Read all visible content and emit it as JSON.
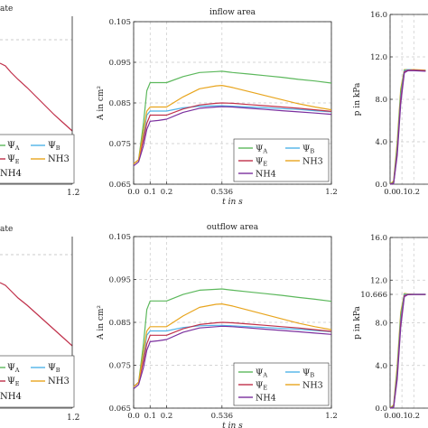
{
  "figure": {
    "top_row": {
      "left_panel": {
        "title_fragment": "ate",
        "x_tick_labels": [
          "1.2"
        ],
        "legend": {
          "entries": [
            {
              "sym": "Ψ",
              "sub": "A",
              "color": "#5cb85c"
            },
            {
              "sym": "Ψ",
              "sub": "B",
              "color": "#4fb3e8"
            },
            {
              "sym": "Ψ",
              "sub": "E",
              "color": "#c0304a"
            },
            {
              "text": "NH3",
              "color": "#e8a51e"
            },
            {
              "text": "NH4",
              "color": "#7b2f9e"
            }
          ]
        }
      },
      "middle_panel": {
        "chart_data": {
          "type": "line",
          "title": "inflow area",
          "xlabel": "t in s",
          "ylabel": "A in cm²",
          "xlim": [
            0,
            1.2
          ],
          "ylim": [
            0.065,
            0.105
          ],
          "x_ticks": [
            "0.0",
            "0.1",
            "0.2",
            "0.536",
            "1.2"
          ],
          "y_ticks": [
            "0.065",
            "0.075",
            "0.085",
            "0.095",
            "0.105"
          ],
          "grid": true,
          "legend_position": "bottom-right",
          "series": [
            {
              "name": "ΨA",
              "color": "#5cb85c",
              "x": [
                0,
                0.03,
                0.06,
                0.08,
                0.1,
                0.15,
                0.2,
                0.3,
                0.4,
                0.5,
                0.536,
                0.6,
                0.7,
                0.8,
                0.9,
                1.0,
                1.1,
                1.2
              ],
              "y": [
                0.07,
                0.071,
                0.08,
                0.088,
                0.09,
                0.09,
                0.09,
                0.0915,
                0.0925,
                0.0927,
                0.0928,
                0.0925,
                0.0921,
                0.0917,
                0.0913,
                0.0908,
                0.0904,
                0.0899
              ]
            },
            {
              "name": "ΨB",
              "color": "#4fb3e8",
              "x": [
                0,
                0.03,
                0.06,
                0.08,
                0.1,
                0.15,
                0.2,
                0.3,
                0.4,
                0.5,
                0.536,
                0.6,
                0.7,
                0.8,
                0.9,
                1.0,
                1.1,
                1.2
              ],
              "y": [
                0.07,
                0.071,
                0.077,
                0.082,
                0.083,
                0.083,
                0.083,
                0.0838,
                0.0842,
                0.0843,
                0.0843,
                0.0842,
                0.084,
                0.0838,
                0.0836,
                0.0834,
                0.0831,
                0.0828
              ]
            },
            {
              "name": "ΨE",
              "color": "#c0304a",
              "x": [
                0,
                0.03,
                0.06,
                0.08,
                0.1,
                0.15,
                0.2,
                0.3,
                0.4,
                0.5,
                0.536,
                0.6,
                0.7,
                0.8,
                0.9,
                1.0,
                1.1,
                1.2
              ],
              "y": [
                0.07,
                0.071,
                0.076,
                0.08,
                0.082,
                0.082,
                0.082,
                0.0835,
                0.0845,
                0.0849,
                0.085,
                0.0849,
                0.0846,
                0.0843,
                0.084,
                0.0837,
                0.0833,
                0.0829
              ]
            },
            {
              "name": "NH3",
              "color": "#e8a51e",
              "x": [
                0,
                0.03,
                0.06,
                0.08,
                0.1,
                0.15,
                0.2,
                0.3,
                0.4,
                0.5,
                0.536,
                0.6,
                0.7,
                0.8,
                0.9,
                1.0,
                1.1,
                1.2
              ],
              "y": [
                0.07,
                0.071,
                0.078,
                0.083,
                0.084,
                0.084,
                0.084,
                0.0865,
                0.0885,
                0.0892,
                0.0893,
                0.0888,
                0.0878,
                0.0868,
                0.0858,
                0.0848,
                0.084,
                0.0833
              ]
            },
            {
              "name": "NH4",
              "color": "#7b2f9e",
              "x": [
                0,
                0.03,
                0.06,
                0.08,
                0.1,
                0.15,
                0.2,
                0.3,
                0.4,
                0.5,
                0.536,
                0.6,
                0.7,
                0.8,
                0.9,
                1.0,
                1.1,
                1.2
              ],
              "y": [
                0.0695,
                0.0705,
                0.0745,
                0.0785,
                0.0805,
                0.0807,
                0.081,
                0.0827,
                0.0837,
                0.084,
                0.0841,
                0.084,
                0.0837,
                0.0834,
                0.0831,
                0.0828,
                0.0825,
                0.0822
              ]
            }
          ]
        }
      },
      "right_panel": {
        "chart_data": {
          "type": "line",
          "ylabel": "p in kPa",
          "x_ticks": [
            "0.0",
            "0.1",
            "0.2"
          ],
          "y_ticks": [
            "0.0",
            "4.0",
            "8.0",
            "12.0",
            "16.0"
          ],
          "ylim": [
            0,
            16
          ],
          "grid": true,
          "series": [
            {
              "color": "#e8a51e",
              "x": [
                0,
                0.03,
                0.06,
                0.09,
                0.12,
                0.15,
                0.2,
                0.3
              ],
              "y": [
                0,
                0.3,
                4.0,
                9.0,
                10.8,
                10.8,
                10.8,
                10.75
              ]
            },
            {
              "color": "#5cb85c",
              "x": [
                0,
                0.03,
                0.06,
                0.09,
                0.12,
                0.15,
                0.2,
                0.3
              ],
              "y": [
                0,
                0.2,
                3.6,
                8.7,
                10.75,
                10.8,
                10.75,
                10.7
              ]
            },
            {
              "color": "#4fb3e8",
              "x": [
                0,
                0.03,
                0.06,
                0.09,
                0.12,
                0.15,
                0.2,
                0.3
              ],
              "y": [
                0,
                0.1,
                3.2,
                8.3,
                10.7,
                10.8,
                10.75,
                10.7
              ]
            },
            {
              "color": "#c0304a",
              "x": [
                0,
                0.03,
                0.06,
                0.09,
                0.12,
                0.15,
                0.2,
                0.3
              ],
              "y": [
                0,
                0.1,
                3.0,
                8.0,
                10.6,
                10.75,
                10.75,
                10.7
              ]
            },
            {
              "color": "#7b2f9e",
              "x": [
                0,
                0.03,
                0.06,
                0.09,
                0.12,
                0.15,
                0.2,
                0.3
              ],
              "y": [
                0,
                0.05,
                2.7,
                7.6,
                10.5,
                10.7,
                10.7,
                10.65
              ]
            }
          ]
        }
      }
    },
    "bottom_row": {
      "left_panel": {
        "title_fragment": "ate",
        "x_tick_labels": [
          "1.2"
        ],
        "legend": {
          "entries": [
            {
              "sym": "Ψ",
              "sub": "A",
              "color": "#5cb85c"
            },
            {
              "sym": "Ψ",
              "sub": "B",
              "color": "#4fb3e8"
            },
            {
              "sym": "Ψ",
              "sub": "E",
              "color": "#c0304a"
            },
            {
              "text": "NH3",
              "color": "#e8a51e"
            },
            {
              "text": "NH4",
              "color": "#7b2f9e"
            }
          ]
        }
      },
      "middle_panel": {
        "chart_data": {
          "type": "line",
          "title": "outflow area",
          "xlabel": "t in s",
          "ylabel": "A in cm²",
          "xlim": [
            0,
            1.2
          ],
          "ylim": [
            0.065,
            0.105
          ],
          "x_ticks": [
            "0.0",
            "0.1",
            "0.2",
            "0.536",
            "1.2"
          ],
          "y_ticks": [
            "0.065",
            "0.075",
            "0.085",
            "0.095",
            "0.105"
          ],
          "grid": true,
          "legend_position": "bottom-right",
          "series": [
            {
              "name": "ΨA",
              "color": "#5cb85c",
              "x": [
                0,
                0.03,
                0.06,
                0.08,
                0.1,
                0.15,
                0.2,
                0.3,
                0.4,
                0.5,
                0.536,
                0.6,
                0.7,
                0.8,
                0.9,
                1.0,
                1.1,
                1.2
              ],
              "y": [
                0.07,
                0.071,
                0.08,
                0.088,
                0.09,
                0.09,
                0.09,
                0.0915,
                0.0925,
                0.0927,
                0.0928,
                0.0925,
                0.0921,
                0.0917,
                0.0913,
                0.0908,
                0.0904,
                0.0899
              ]
            },
            {
              "name": "ΨB",
              "color": "#4fb3e8",
              "x": [
                0,
                0.03,
                0.06,
                0.08,
                0.1,
                0.15,
                0.2,
                0.3,
                0.4,
                0.5,
                0.536,
                0.6,
                0.7,
                0.8,
                0.9,
                1.0,
                1.1,
                1.2
              ],
              "y": [
                0.07,
                0.071,
                0.077,
                0.082,
                0.083,
                0.083,
                0.083,
                0.0838,
                0.0842,
                0.0843,
                0.0843,
                0.0842,
                0.084,
                0.0838,
                0.0836,
                0.0834,
                0.0831,
                0.0828
              ]
            },
            {
              "name": "ΨE",
              "color": "#c0304a",
              "x": [
                0,
                0.03,
                0.06,
                0.08,
                0.1,
                0.15,
                0.2,
                0.3,
                0.4,
                0.5,
                0.536,
                0.6,
                0.7,
                0.8,
                0.9,
                1.0,
                1.1,
                1.2
              ],
              "y": [
                0.07,
                0.071,
                0.076,
                0.08,
                0.082,
                0.082,
                0.082,
                0.0835,
                0.0845,
                0.0849,
                0.085,
                0.0849,
                0.0846,
                0.0843,
                0.084,
                0.0837,
                0.0833,
                0.0829
              ]
            },
            {
              "name": "NH3",
              "color": "#e8a51e",
              "x": [
                0,
                0.03,
                0.06,
                0.08,
                0.1,
                0.15,
                0.2,
                0.3,
                0.4,
                0.5,
                0.536,
                0.6,
                0.7,
                0.8,
                0.9,
                1.0,
                1.1,
                1.2
              ],
              "y": [
                0.07,
                0.071,
                0.078,
                0.083,
                0.084,
                0.084,
                0.084,
                0.0865,
                0.0885,
                0.0892,
                0.0893,
                0.0888,
                0.0878,
                0.0868,
                0.0858,
                0.0848,
                0.084,
                0.0833
              ]
            },
            {
              "name": "NH4",
              "color": "#7b2f9e",
              "x": [
                0,
                0.03,
                0.06,
                0.08,
                0.1,
                0.15,
                0.2,
                0.3,
                0.4,
                0.5,
                0.536,
                0.6,
                0.7,
                0.8,
                0.9,
                1.0,
                1.1,
                1.2
              ],
              "y": [
                0.0695,
                0.0705,
                0.0745,
                0.0785,
                0.0805,
                0.0807,
                0.081,
                0.0827,
                0.0837,
                0.084,
                0.0841,
                0.084,
                0.0837,
                0.0834,
                0.0831,
                0.0828,
                0.0825,
                0.0822
              ]
            }
          ]
        }
      },
      "right_panel": {
        "chart_data": {
          "type": "line",
          "ylabel": "p in kPa",
          "x_ticks": [
            "0.0",
            "0.1",
            "0.2"
          ],
          "y_ticks": [
            "0.0",
            "4.0",
            "8.0",
            "10.666",
            "12.0",
            "16.0"
          ],
          "ylim": [
            0,
            16
          ],
          "grid": true,
          "series": [
            {
              "color": "#e8a51e",
              "x": [
                0,
                0.03,
                0.06,
                0.09,
                0.12,
                0.15,
                0.2,
                0.3
              ],
              "y": [
                0,
                0.3,
                4.0,
                9.0,
                10.75,
                10.7,
                10.67,
                10.66
              ]
            },
            {
              "color": "#5cb85c",
              "x": [
                0,
                0.03,
                0.06,
                0.09,
                0.12,
                0.15,
                0.2,
                0.3
              ],
              "y": [
                0,
                0.2,
                3.6,
                8.7,
                10.7,
                10.68,
                10.666,
                10.666
              ]
            },
            {
              "color": "#4fb3e8",
              "x": [
                0,
                0.03,
                0.06,
                0.09,
                0.12,
                0.15,
                0.2,
                0.3
              ],
              "y": [
                0,
                0.1,
                3.2,
                8.3,
                10.65,
                10.67,
                10.666,
                10.666
              ]
            },
            {
              "color": "#c0304a",
              "x": [
                0,
                0.03,
                0.06,
                0.09,
                0.12,
                0.15,
                0.2,
                0.3
              ],
              "y": [
                0,
                0.1,
                3.0,
                8.0,
                10.55,
                10.66,
                10.666,
                10.666
              ]
            },
            {
              "color": "#7b2f9e",
              "x": [
                0,
                0.03,
                0.06,
                0.09,
                0.12,
                0.15,
                0.2,
                0.3
              ],
              "y": [
                0,
                0.05,
                2.7,
                7.6,
                10.45,
                10.63,
                10.66,
                10.66
              ]
            }
          ]
        }
      }
    }
  }
}
